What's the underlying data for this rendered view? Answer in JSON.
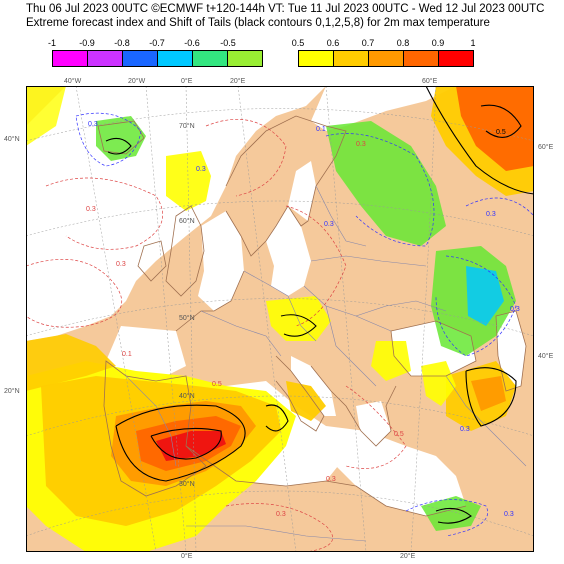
{
  "header": {
    "line1": "Thu 06 Jul 2023 00UTC ©ECMWF t+120-144h  VT: Tue 11 Jul 2023 00UTC - Wed 12 Jul 2023 00UTC",
    "line2": "Extreme forecast index and Shift of Tails (black contours 0,1,2,5,8) for 2m max temperature"
  },
  "colorbar_negative": {
    "labels": [
      "-1",
      "-0.9",
      "-0.8",
      "-0.7",
      "-0.6",
      "-0.5"
    ],
    "colors": [
      "#ff00ff",
      "#cc33ff",
      "#1a66ff",
      "#00c8ff",
      "#33e680",
      "#99ee33"
    ]
  },
  "colorbar_positive": {
    "labels": [
      "0.5",
      "0.6",
      "0.7",
      "0.8",
      "0.9",
      "1"
    ],
    "colors": [
      "#ffff00",
      "#ffcc00",
      "#ff9900",
      "#ff6600",
      "#ff0000"
    ]
  },
  "grid_labels": {
    "lon_top": [
      "40°W",
      "20°W",
      "0°E",
      "20°E",
      "60°E"
    ],
    "lon_bottom": [
      "0°E",
      "20°E"
    ],
    "lat_left": [
      "40°N",
      "20°N"
    ],
    "lat_right": [
      "60°E",
      "40°E"
    ],
    "lat_inner": [
      "70°N",
      "60°N",
      "50°N",
      "40°N",
      "30°N"
    ]
  },
  "contour_labels": [
    "0.3",
    "0.3",
    "0.3",
    "0.3",
    "0.3",
    "0.3",
    "0.3",
    "0.3",
    "0.3",
    "0.3",
    "0.3",
    "0.3",
    "0.5",
    "0.5",
    "0.1",
    "0.1",
    "0.5"
  ],
  "colors": {
    "land": "#f5c99b",
    "sea": "#ffffff",
    "coast": "#a07050",
    "border": "#8888aa",
    "yellow": "#ffff00",
    "lightorange": "#ffcc00",
    "orange": "#ff9900",
    "darkorange": "#ff6600",
    "red": "#ee1111",
    "green": "#66e833",
    "cyan": "#00c8ff",
    "neg_contour": "#3333ff",
    "pos_contour": "#dd4444"
  }
}
